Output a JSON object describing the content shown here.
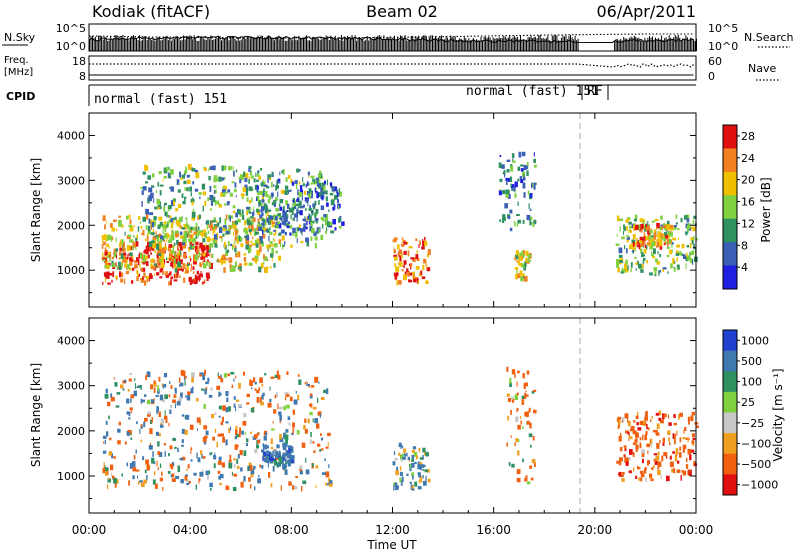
{
  "header": {
    "station": "Kodiak (fitACF)",
    "beam": "Beam 02",
    "date": "06/Apr/2011"
  },
  "top_panels": {
    "nsky_label": "N.Sky",
    "nsky_ticks": [
      "10^5",
      "10^0"
    ],
    "nsearch_label": "N.Search",
    "nsearch_ticks": [
      "10^5",
      "10^0"
    ],
    "freq_label_1": "Freq.",
    "freq_label_2": "[MHz]",
    "freq_ticks": [
      "18",
      "8"
    ],
    "nave_label": "Nave",
    "nave_ticks": [
      "60",
      "0"
    ],
    "cpid_label": "CPID",
    "cpid_segments": [
      {
        "text": "normal (fast) 151",
        "start_hour": 0.0,
        "end_hour": 19.4
      },
      {
        "text": "normal (fast) 151",
        "start_hour": 19.4,
        "end_hour": 19.4
      },
      {
        "text": "RF",
        "start_hour": 19.4,
        "end_hour": 20.8
      }
    ]
  },
  "chart_data": [
    {
      "type": "heatmap",
      "title": "",
      "xlabel": "Time UT",
      "ylabel": "Slant Range [km]",
      "xlim": [
        0,
        24
      ],
      "ylim": [
        180,
        4500
      ],
      "x_tick_labels": [
        "00:00",
        "04:00",
        "08:00",
        "12:00",
        "16:00",
        "20:00",
        "00:00"
      ],
      "y_tick_labels": [
        "1000",
        "2000",
        "3000",
        "4000"
      ],
      "colorbar": {
        "label": "Power [dB]",
        "ticks": [
          "4",
          "8",
          "12",
          "16",
          "20",
          "24",
          "28"
        ],
        "range": [
          0,
          30
        ],
        "colors": [
          "#1f1fe0",
          "#3a5fb5",
          "#2f9060",
          "#7fd13f",
          "#f0c000",
          "#f08020",
          "#e01010"
        ]
      },
      "echo_regions": [
        {
          "t0": 0.5,
          "t1": 4.8,
          "r0": 700,
          "r1": 1600,
          "level": 27
        },
        {
          "t0": 0.5,
          "t1": 7.5,
          "r0": 1000,
          "r1": 2200,
          "level": 18
        },
        {
          "t0": 2.0,
          "t1": 9.2,
          "r0": 1500,
          "r1": 3300,
          "level": 12
        },
        {
          "t0": 6.5,
          "t1": 10.0,
          "r0": 1800,
          "r1": 3000,
          "level": 8
        },
        {
          "t0": 12.0,
          "t1": 13.4,
          "r0": 700,
          "r1": 1700,
          "level": 24
        },
        {
          "t0": 16.2,
          "t1": 17.6,
          "r0": 1900,
          "r1": 3600,
          "level": 10
        },
        {
          "t0": 16.8,
          "t1": 17.4,
          "r0": 800,
          "r1": 1400,
          "level": 18
        },
        {
          "t0": 20.8,
          "t1": 24.0,
          "r0": 900,
          "r1": 2200,
          "level": 14
        },
        {
          "t0": 21.5,
          "t1": 23.0,
          "r0": 1500,
          "r1": 2000,
          "level": 22
        }
      ]
    },
    {
      "type": "heatmap",
      "title": "",
      "xlabel": "Time UT",
      "ylabel": "Slant Range [km]",
      "xlim": [
        0,
        24
      ],
      "ylim": [
        180,
        4500
      ],
      "x_tick_labels": [
        "00:00",
        "04:00",
        "08:00",
        "12:00",
        "16:00",
        "20:00",
        "00:00"
      ],
      "y_tick_labels": [
        "1000",
        "2000",
        "3000",
        "4000"
      ],
      "colorbar": {
        "label": "Velocity [m s⁻¹]",
        "ticks": [
          "1000",
          "500",
          "100",
          "25",
          "−25",
          "−100",
          "−500",
          "−1000"
        ],
        "colors": [
          "#2040d0",
          "#3f79b0",
          "#2f9060",
          "#7fd13f",
          "#c8c8c8",
          "#f0a020",
          "#f06010",
          "#e01010"
        ]
      },
      "echo_regions": [
        {
          "t0": 0.5,
          "t1": 9.5,
          "r0": 700,
          "r1": 3300,
          "velocity": 0
        },
        {
          "t0": 6.8,
          "t1": 8.0,
          "r0": 1200,
          "r1": 1700,
          "velocity": 300
        },
        {
          "t0": 12.0,
          "t1": 13.4,
          "r0": 700,
          "r1": 1700,
          "velocity": 200
        },
        {
          "t0": 16.5,
          "t1": 17.6,
          "r0": 800,
          "r1": 3400,
          "velocity": -200
        },
        {
          "t0": 20.8,
          "t1": 24.0,
          "r0": 900,
          "r1": 2400,
          "velocity": -300
        }
      ]
    }
  ]
}
